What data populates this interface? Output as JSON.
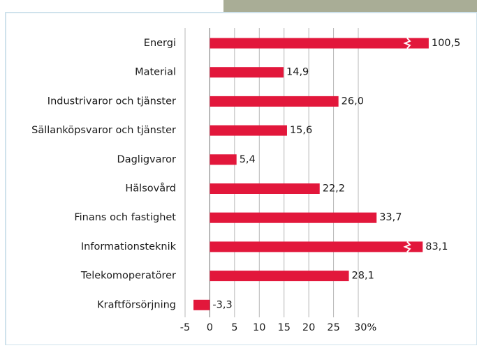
{
  "chart_data": {
    "type": "bar",
    "orientation": "horizontal",
    "categories": [
      "Energi",
      "Material",
      "Industrivaror och tjänster",
      "Sällanköpsvaror och tjänster",
      "Dagligvaror",
      "Hälsovård",
      "Finans och fastighet",
      "Informationsteknik",
      "Telekomoperatörer",
      "Kraftförsörjning"
    ],
    "values": [
      100.5,
      14.9,
      26.0,
      15.6,
      5.4,
      22.2,
      33.7,
      83.1,
      28.1,
      -3.3
    ],
    "value_labels": [
      "100,5",
      "14,9",
      "26,0",
      "15,6",
      "5,4",
      "22,2",
      "33,7",
      "83,1",
      "28,1",
      "-3,3"
    ],
    "color": "#e2173b",
    "xlim": [
      -5,
      30
    ],
    "xticks": [
      -5,
      0,
      5,
      10,
      15,
      20,
      25,
      {
        "value": 30,
        "label": "30%"
      }
    ],
    "grid": true
  }
}
